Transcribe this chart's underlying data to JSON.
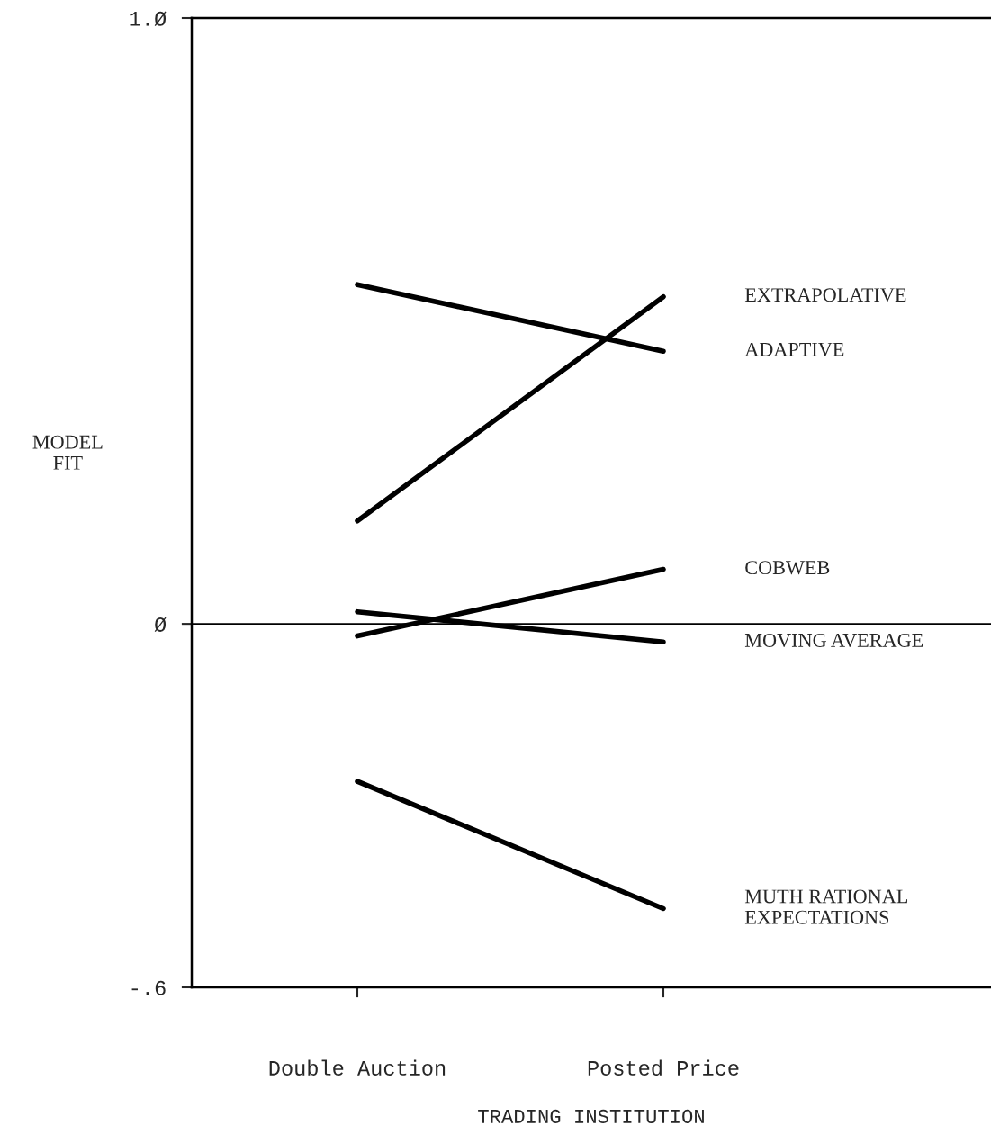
{
  "chart_data": {
    "type": "line",
    "xlabel": "TRADING INSTITUTION",
    "ylabel": "MODEL\nFIT",
    "categories": [
      "Double Auction",
      "Posted Price"
    ],
    "series": [
      {
        "name": "EXTRAPOLATIVE",
        "color": "#000000",
        "values": [
          0.17,
          0.54
        ]
      },
      {
        "name": "ADAPTIVE",
        "color": "#000000",
        "values": [
          0.56,
          0.45
        ]
      },
      {
        "name": "COBWEB",
        "color": "#000000",
        "values": [
          -0.02,
          0.09
        ]
      },
      {
        "name": "MOVING AVERAGE",
        "color": "#000000",
        "values": [
          0.02,
          -0.03
        ]
      },
      {
        "name": "MUTH RATIONAL\nEXPECTATIONS",
        "color": "#000000",
        "values": [
          -0.26,
          -0.47
        ]
      }
    ],
    "ylim": [
      -0.6,
      1.0
    ],
    "yticks": [
      {
        "value": -0.6,
        "label": "-.6"
      },
      {
        "value": 0,
        "label": "Ø"
      },
      {
        "value": 1.0,
        "label": "1.Ø"
      }
    ],
    "ref_lines": [
      {
        "axis": "y",
        "value": 0
      }
    ],
    "grid": false,
    "legend": false,
    "marker": "none",
    "line_style": "solid"
  }
}
